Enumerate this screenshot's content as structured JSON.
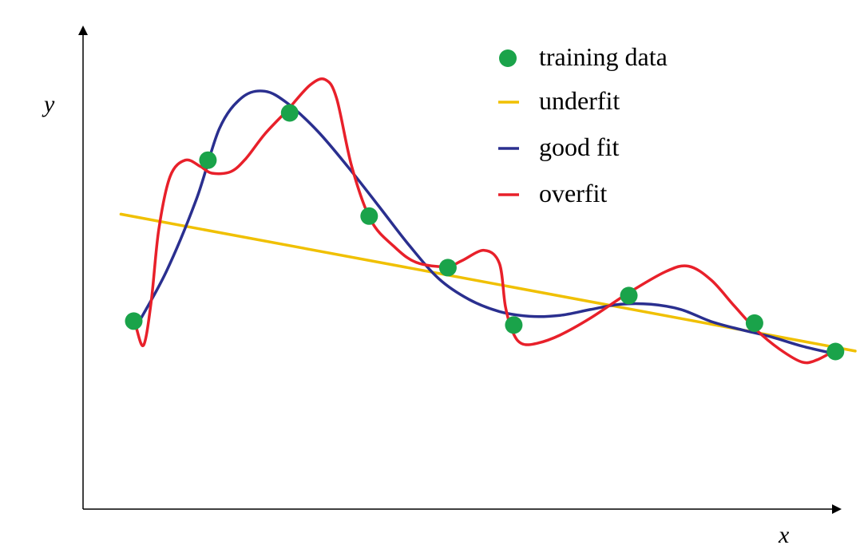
{
  "chart_data": {
    "type": "scatter",
    "xlabel": "x",
    "ylabel": "y",
    "xlim": [
      0,
      10
    ],
    "ylim": [
      0,
      10
    ],
    "grid": false,
    "legend_placement": "top-right",
    "training_data": {
      "name": "training data",
      "color": "#1aa34a",
      "points": [
        {
          "x": 0.67,
          "y": 3.9
        },
        {
          "x": 1.65,
          "y": 7.24
        },
        {
          "x": 2.73,
          "y": 8.22
        },
        {
          "x": 3.78,
          "y": 6.08
        },
        {
          "x": 4.82,
          "y": 5.01
        },
        {
          "x": 5.69,
          "y": 3.82
        },
        {
          "x": 7.21,
          "y": 4.43
        },
        {
          "x": 8.87,
          "y": 3.86
        },
        {
          "x": 9.94,
          "y": 3.27
        }
      ]
    },
    "series": [
      {
        "name": "underfit",
        "color": "#f0c000",
        "x": [
          0.5,
          10.2
        ],
        "y": [
          6.12,
          3.28
        ]
      },
      {
        "name": "good fit",
        "color": "#2a2f8f",
        "x": [
          0.7,
          1.1,
          1.5,
          1.8,
          2.1,
          2.4,
          2.7,
          3.1,
          3.5,
          3.9,
          4.3,
          4.7,
          5.1,
          5.5,
          5.9,
          6.3,
          6.7,
          7.1,
          7.5,
          7.9,
          8.3,
          8.7,
          9.1,
          9.5,
          9.94
        ],
        "y": [
          3.78,
          4.93,
          6.44,
          7.89,
          8.54,
          8.67,
          8.42,
          7.84,
          7.1,
          6.3,
          5.49,
          4.78,
          4.35,
          4.1,
          4.0,
          4.02,
          4.14,
          4.25,
          4.25,
          4.14,
          3.89,
          3.72,
          3.57,
          3.38,
          3.22
        ]
      },
      {
        "name": "overfit",
        "color": "#e8202a",
        "x": [
          0.7,
          0.8,
          0.9,
          1.0,
          1.15,
          1.35,
          1.55,
          1.7,
          1.95,
          2.15,
          2.4,
          2.7,
          3.0,
          3.2,
          3.35,
          3.55,
          3.8,
          4.1,
          4.4,
          4.8,
          5.0,
          5.3,
          5.5,
          5.58,
          5.68,
          5.8,
          6.0,
          6.3,
          6.7,
          7.2,
          7.7,
          8.0,
          8.3,
          8.6,
          8.9,
          9.2,
          9.5,
          9.7,
          9.94
        ],
        "y": [
          3.78,
          3.4,
          4.3,
          5.8,
          6.9,
          7.24,
          7.11,
          6.97,
          7.0,
          7.27,
          7.78,
          8.28,
          8.8,
          8.91,
          8.52,
          7.11,
          6.0,
          5.46,
          5.12,
          5.03,
          5.15,
          5.37,
          5.1,
          4.2,
          3.66,
          3.43,
          3.44,
          3.61,
          3.96,
          4.48,
          4.93,
          5.04,
          4.75,
          4.22,
          3.71,
          3.32,
          3.05,
          3.1,
          3.3
        ]
      }
    ]
  }
}
